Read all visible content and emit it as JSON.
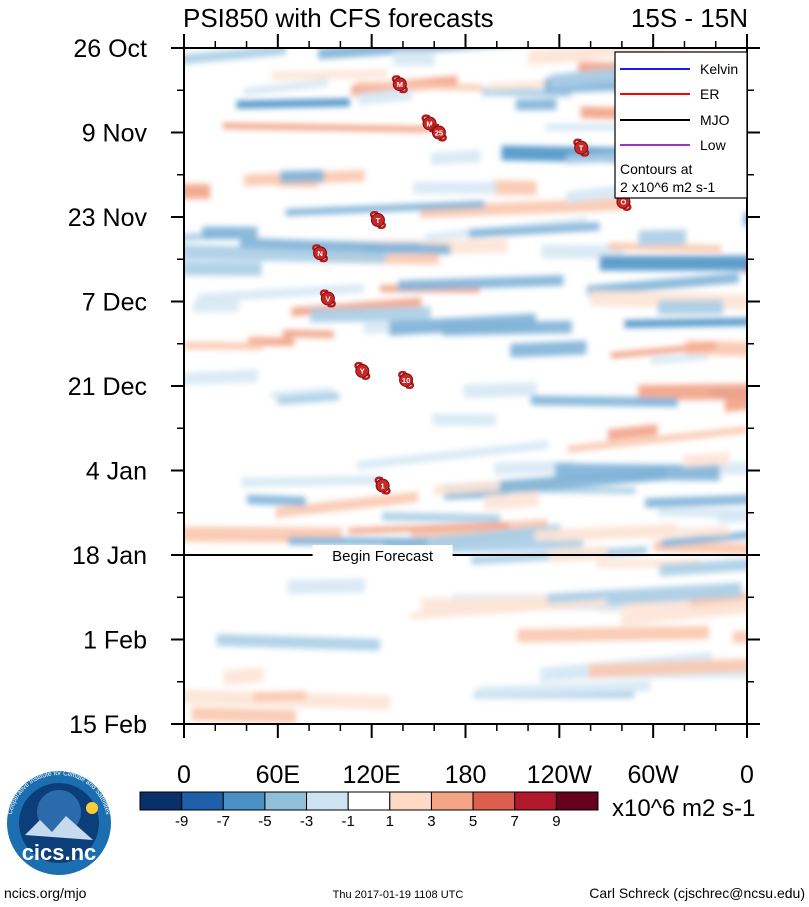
{
  "chart_data": {
    "type": "heatmap",
    "title": "PSI850 with CFS forecasts",
    "region": "15S - 15N",
    "x_ticks": [
      "0",
      "60E",
      "120E",
      "180",
      "120W",
      "60W",
      "0"
    ],
    "y_ticks": [
      "26 Oct",
      "9 Nov",
      "23 Nov",
      "7 Dec",
      "21 Dec",
      "4 Jan",
      "18 Jan",
      "1 Feb",
      "15 Feb"
    ],
    "begin_forecast_label": "Begin Forecast",
    "begin_forecast_date": "18 Jan",
    "legend": {
      "entries": [
        {
          "label": "Kelvin",
          "color": "#1a1aff"
        },
        {
          "label": "ER",
          "color": "#ff0000"
        },
        {
          "label": "MJO",
          "color": "#000000"
        },
        {
          "label": "Low",
          "color": "#9933cc"
        }
      ],
      "note_line1": "Contours at",
      "note_line2": "2 x10^6 m2 s-1"
    },
    "colorbar": {
      "labels": [
        "-9",
        "-7",
        "-5",
        "-3",
        "-1",
        "1",
        "3",
        "5",
        "7",
        "9"
      ],
      "colors": [
        "#08306b",
        "#1f5fa8",
        "#4a90c4",
        "#90bfdc",
        "#cde3f1",
        "#ffffff",
        "#fdd9c6",
        "#f3a586",
        "#dc5f4d",
        "#b2182b",
        "#67001f"
      ],
      "units": "x10^6 m2 s-1"
    },
    "storms": [
      {
        "label": "M",
        "lon": 138,
        "date_offset_days": 6
      },
      {
        "label": "M",
        "lon": 157,
        "date_offset_days": 12.5
      },
      {
        "label": "25",
        "lon": 163,
        "date_offset_days": 14
      },
      {
        "label": "T",
        "lon": 254,
        "date_offset_days": 16.5
      },
      {
        "label": "O",
        "lon": 281,
        "date_offset_days": 25.5
      },
      {
        "label": "T",
        "lon": 124,
        "date_offset_days": 28.5
      },
      {
        "label": "N",
        "lon": 87,
        "date_offset_days": 34
      },
      {
        "label": "V",
        "lon": 92,
        "date_offset_days": 41.5
      },
      {
        "label": "Y",
        "lon": 114,
        "date_offset_days": 53.5
      },
      {
        "label": "10",
        "lon": 142,
        "date_offset_days": 55
      },
      {
        "label": "1",
        "lon": 127,
        "date_offset_days": 72.5
      }
    ]
  },
  "logo": {
    "text": "cics.nc",
    "ring_text": "Cooperative Institute for Climate and Satellites"
  },
  "footer": {
    "left": "ncics.org/mjo",
    "center": "Thu 2017-01-19 1108 UTC",
    "right": "Carl Schreck (cjschrec@ncsu.edu)"
  }
}
